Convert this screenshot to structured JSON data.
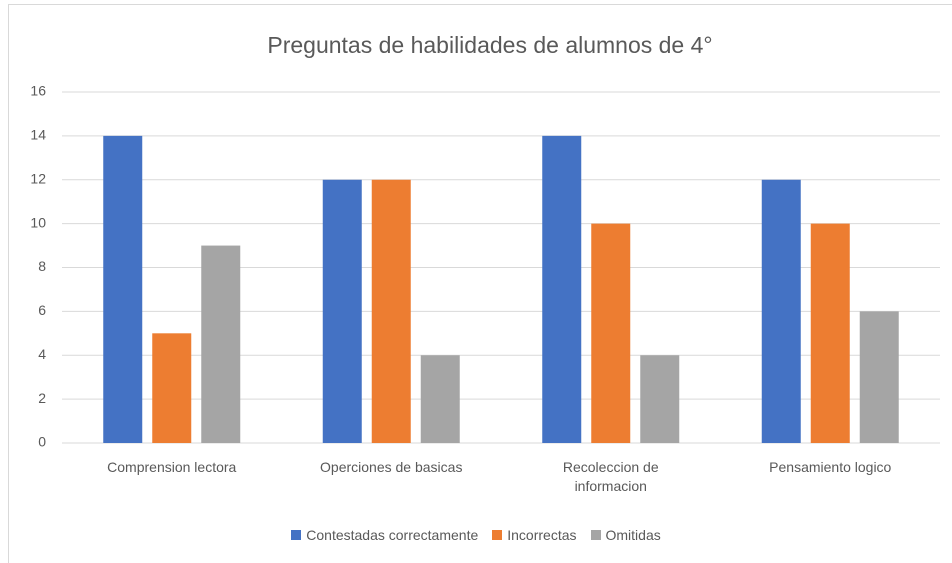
{
  "chart_data": {
    "type": "bar",
    "title": "Preguntas de habilidades de alumnos de 4°",
    "categories": [
      "Comprension lectora",
      "Operciones de basicas",
      "Recoleccion de informacion",
      "Pensamiento logico"
    ],
    "series": [
      {
        "name": "Contestadas correctamente",
        "color": "#4472c4",
        "values": [
          14,
          12,
          14,
          12
        ]
      },
      {
        "name": "Incorrectas",
        "color": "#ed7d31",
        "values": [
          5,
          12,
          10,
          10
        ]
      },
      {
        "name": "Omitidas",
        "color": "#a5a5a5",
        "values": [
          9,
          4,
          4,
          6
        ]
      }
    ],
    "ylim": [
      0,
      16
    ],
    "yticks": [
      0,
      2,
      4,
      6,
      8,
      10,
      12,
      14,
      16
    ],
    "grid": true,
    "legend": "bottom"
  }
}
